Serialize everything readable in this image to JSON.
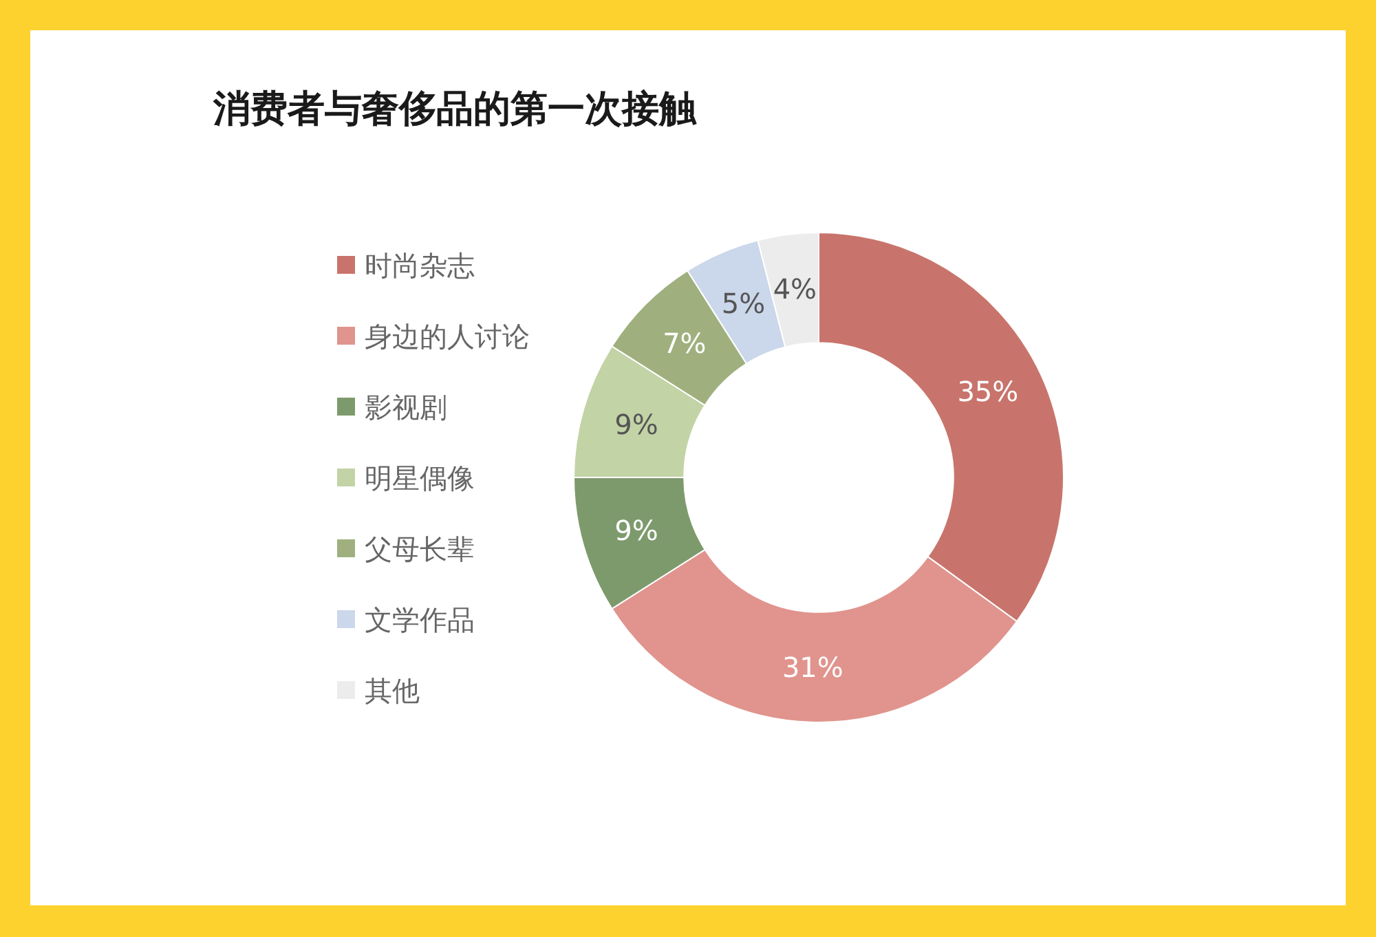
{
  "chart_data": {
    "type": "donut",
    "title": "消费者与奢侈品的第一次接触",
    "categories": [
      "时尚杂志",
      "身边的人讨论",
      "影视剧",
      "明星偶像",
      "父母长辈",
      "文学作品",
      "其他"
    ],
    "values": [
      35,
      31,
      9,
      9,
      7,
      5,
      4
    ],
    "colors": [
      "#c8746c",
      "#e0948d",
      "#7d9a6c",
      "#c2d3a6",
      "#9fb07e",
      "#cbd7ea",
      "#ececec"
    ],
    "value_labels": [
      "35%",
      "31%",
      "9%",
      "9%",
      "7%",
      "5%",
      "4%"
    ],
    "legend": "left"
  }
}
